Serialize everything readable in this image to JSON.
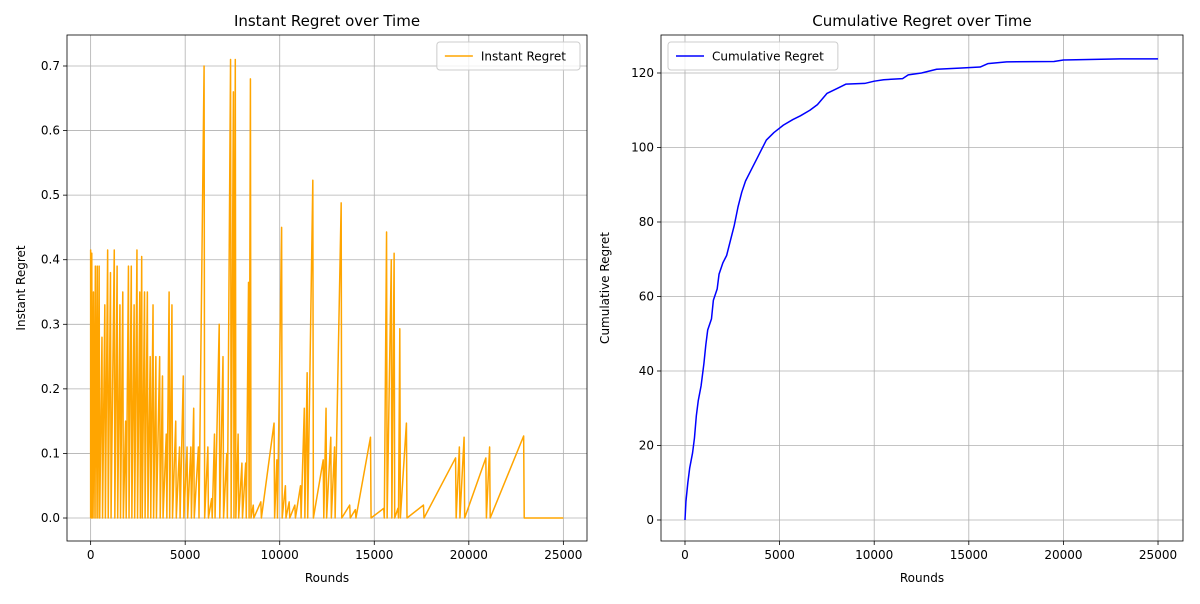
{
  "chart_data": [
    {
      "type": "line",
      "title": "Instant Regret over Time",
      "xlabel": "Rounds",
      "ylabel": "Instant Regret",
      "xlim": [
        -1250,
        26250
      ],
      "ylim": [
        -0.0356,
        0.748
      ],
      "xticks": [
        0,
        5000,
        10000,
        15000,
        20000,
        25000
      ],
      "yticks": [
        {
          "value": 0,
          "label": "0.0"
        },
        {
          "value": 0.1,
          "label": "0.1"
        },
        {
          "value": 0.2,
          "label": "0.2"
        },
        {
          "value": 0.3,
          "label": "0.3"
        },
        {
          "value": 0.4,
          "label": "0.4"
        },
        {
          "value": 0.5,
          "label": "0.5"
        },
        {
          "value": 0.6,
          "label": "0.6"
        },
        {
          "value": 0.7,
          "label": "0.7"
        }
      ],
      "grid": true,
      "legend": "upper right",
      "x": [
        0,
        0,
        30,
        60,
        90,
        150,
        180,
        250,
        280,
        350,
        380,
        450,
        480,
        600,
        630,
        750,
        780,
        900,
        930,
        1050,
        1080,
        1250,
        1280,
        1400,
        1430,
        1550,
        1580,
        1700,
        1730,
        1850,
        1880,
        2000,
        2030,
        2150,
        2180,
        2300,
        2330,
        2450,
        2480,
        2600,
        2630,
        2700,
        2730,
        2850,
        2880,
        3000,
        3030,
        3150,
        3180,
        3300,
        3330,
        3450,
        3480,
        3650,
        3680,
        3800,
        3830,
        4000,
        4030,
        4150,
        4180,
        4300,
        4330,
        4500,
        4530,
        4700,
        4730,
        4900,
        4930,
        5100,
        5130,
        5300,
        5330,
        5450,
        5480,
        5700,
        5730,
        6000,
        6030,
        6200,
        6230,
        6400,
        6430,
        6550,
        6580,
        6800,
        6830,
        7000,
        7030,
        7200,
        7230,
        7400,
        7430,
        7550,
        7580,
        7650,
        7680,
        7800,
        7830,
        8000,
        8030,
        8200,
        8230,
        8350,
        8380,
        8450,
        8480,
        8600,
        8630,
        9000,
        9030,
        9700,
        9730,
        9850,
        9880,
        10100,
        10130,
        10300,
        10330,
        10500,
        10530,
        10800,
        10830,
        11100,
        11130,
        11300,
        11330,
        11450,
        11480,
        11750,
        11780,
        12300,
        12330,
        12450,
        12480,
        12700,
        12730,
        12900,
        12930,
        13250,
        13280,
        13700,
        13730,
        14000,
        14030,
        14800,
        14830,
        15500,
        15530,
        15650,
        15680,
        15900,
        15930,
        16050,
        16080,
        16250,
        16280,
        16350,
        16380,
        16700,
        16730,
        17600,
        17630,
        19300,
        19330,
        19500,
        19530,
        19750,
        19780,
        20900,
        20930,
        21100,
        21130,
        22900,
        22930,
        25000
      ],
      "series": [
        {
          "name": "Instant Regret",
          "color": "orange",
          "values": [
            0,
            0.415,
            0,
            0.41,
            0,
            0.35,
            0,
            0.39,
            0,
            0.39,
            0,
            0.39,
            0,
            0.28,
            0,
            0.33,
            0,
            0.415,
            0,
            0.38,
            0,
            0.415,
            0,
            0.39,
            0,
            0.33,
            0,
            0.35,
            0,
            0.15,
            0,
            0.39,
            0,
            0.39,
            0,
            0.33,
            0,
            0.415,
            0,
            0.35,
            0,
            0.405,
            0,
            0.35,
            0,
            0.35,
            0,
            0.25,
            0,
            0.33,
            0,
            0.25,
            0,
            0.25,
            0,
            0.22,
            0,
            0.13,
            0,
            0.35,
            0,
            0.33,
            0,
            0.15,
            0,
            0.11,
            0,
            0.22,
            0,
            0.11,
            0,
            0.11,
            0,
            0.17,
            0,
            0.11,
            0,
            0.7,
            0,
            0.11,
            0,
            0.03,
            0,
            0.13,
            0,
            0.3,
            0,
            0.25,
            0,
            0.1,
            0,
            0.71,
            0,
            0.66,
            0,
            0.71,
            0,
            0.13,
            0,
            0.085,
            0,
            0.085,
            0,
            0.365,
            0,
            0.68,
            0,
            0.02,
            0,
            0.025,
            0,
            0.147,
            0,
            0.09,
            0,
            0.45,
            0,
            0.05,
            0,
            0.025,
            0,
            0.02,
            0,
            0.05,
            0,
            0.17,
            0,
            0.225,
            0,
            0.523,
            0,
            0.09,
            0,
            0.17,
            0,
            0.125,
            0,
            0.11,
            0,
            0.488,
            0,
            0.02,
            0,
            0.013,
            0,
            0.125,
            0,
            0.015,
            0,
            0.443,
            0,
            0.4,
            0,
            0.41,
            0,
            0.015,
            0,
            0.293,
            0,
            0.147,
            0,
            0.02,
            0,
            0.093,
            0,
            0.11,
            0,
            0.125,
            0,
            0.093,
            0,
            0.11,
            0,
            0.127,
            0,
            0
          ]
        }
      ]
    },
    {
      "type": "line",
      "title": "Cumulative Regret over Time",
      "xlabel": "Rounds",
      "ylabel": "Cumulative Regret",
      "xlim": [
        -1268,
        26320
      ],
      "ylim": [
        -5.64,
        130.2
      ],
      "xticks": [
        0,
        5000,
        10000,
        15000,
        20000,
        25000
      ],
      "yticks": [
        0,
        20,
        40,
        60,
        80,
        100,
        120
      ],
      "grid": true,
      "legend": "upper left",
      "x": [
        0,
        50,
        150,
        250,
        400,
        500,
        600,
        700,
        850,
        1000,
        1100,
        1200,
        1400,
        1500,
        1700,
        1800,
        2000,
        2200,
        2400,
        2600,
        2800,
        3000,
        3200,
        3500,
        3800,
        4000,
        4300,
        4700,
        5200,
        5700,
        6100,
        6600,
        7000,
        7500,
        8100,
        8500,
        9500,
        10000,
        10500,
        11500,
        11800,
        12500,
        13300,
        14500,
        15600,
        16000,
        17000,
        19500,
        20000,
        21000,
        23000,
        25000
      ],
      "series": [
        {
          "name": "Cumulative Regret",
          "color": "blue",
          "values": [
            0,
            5,
            10,
            14,
            18,
            22,
            28,
            32,
            36,
            42,
            47,
            51,
            54,
            59,
            62,
            66,
            69,
            71,
            75,
            79,
            84,
            88,
            91,
            94,
            97,
            99,
            102,
            104,
            106,
            107.5,
            108.5,
            110,
            111.5,
            114.5,
            116,
            117,
            117.2,
            117.8,
            118.2,
            118.5,
            119.5,
            120,
            121,
            121.3,
            121.6,
            122.5,
            123,
            123.1,
            123.5,
            123.6,
            123.8,
            123.8
          ]
        }
      ]
    }
  ]
}
